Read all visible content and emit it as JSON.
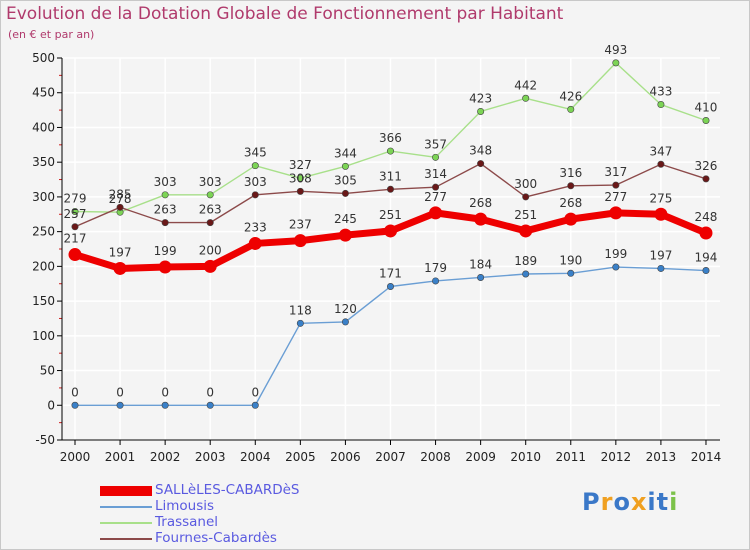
{
  "header": {
    "title": "Evolution de la Dotation Globale de Fonctionnement par Habitant",
    "subtitle": "(en € et par an)"
  },
  "colors": {
    "background": "#f4f4f4",
    "grid": "#ffffff",
    "axis": "#000000",
    "title": "#b03a6c",
    "legend_text": "#5a5ae0"
  },
  "chart_data": {
    "type": "line",
    "title": "Evolution de la Dotation Globale de Fonctionnement par Habitant",
    "subtitle": "(en € et par an)",
    "x": [
      "2000",
      "2001",
      "2002",
      "2003",
      "2004",
      "2005",
      "2006",
      "2007",
      "2008",
      "2009",
      "2010",
      "2011",
      "2012",
      "2013",
      "2014"
    ],
    "ylim": [
      -50,
      500
    ],
    "yticks": [
      -50,
      0,
      50,
      100,
      150,
      200,
      250,
      300,
      350,
      400,
      450,
      500
    ],
    "grid": true,
    "legend_position": "bottom-left",
    "series": [
      {
        "name": "SALLèLES-CABARDèS",
        "color": "#ee0000",
        "point_color": "#ee0000",
        "style": "thick",
        "values": [
          217,
          197,
          199,
          200,
          233,
          237,
          245,
          251,
          277,
          268,
          251,
          268,
          277,
          275,
          248
        ]
      },
      {
        "name": "Limousis",
        "color": "#6a9ed4",
        "point_color": "#3a80c8",
        "style": "thin",
        "values": [
          0,
          0,
          0,
          0,
          0,
          118,
          120,
          171,
          179,
          184,
          189,
          190,
          199,
          197,
          194
        ]
      },
      {
        "name": "Trassanel",
        "color": "#a8e08a",
        "point_color": "#7cd455",
        "style": "thin",
        "values": [
          279,
          278,
          303,
          303,
          345,
          327,
          344,
          366,
          357,
          423,
          442,
          426,
          493,
          433,
          410
        ]
      },
      {
        "name": "Fournes-Cabardès",
        "color": "#8c4a4a",
        "point_color": "#6a1818",
        "style": "thin",
        "values": [
          257,
          285,
          263,
          263,
          303,
          308,
          305,
          311,
          314,
          348,
          300,
          316,
          317,
          347,
          326
        ]
      }
    ]
  },
  "legend": {
    "items": [
      "SALLèLES-CABARDèS",
      "Limousis",
      "Trassanel",
      "Fournes-Cabardès"
    ]
  },
  "logo": {
    "letters": [
      "P",
      "r",
      "o",
      "x",
      "i",
      "t",
      "i"
    ],
    "letter_colors": [
      "#3a78c8",
      "#f0a020",
      "#3a78c8",
      "#f0a020",
      "#3a78c8",
      "#3a78c8",
      "#7cc24a"
    ]
  }
}
